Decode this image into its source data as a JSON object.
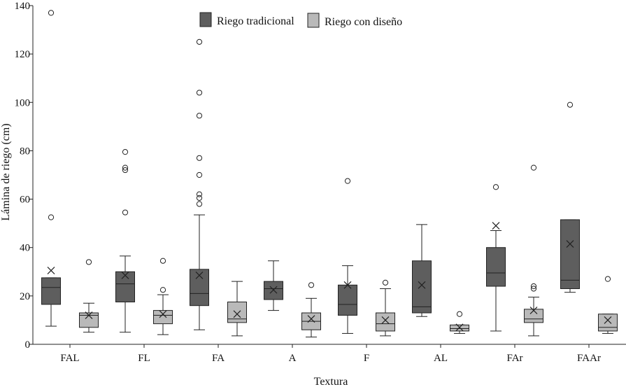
{
  "chart_data": {
    "type": "box",
    "title": "",
    "xlabel": "Textura",
    "ylabel": "Lámina de riego (cm)",
    "ylim": [
      0,
      140
    ],
    "yticks": [
      0,
      20,
      40,
      60,
      80,
      100,
      120,
      140
    ],
    "grid": false,
    "legend_position": "top-center",
    "colors": {
      "tradicional": "#5e5e5e",
      "diseno": "#b9b9b9",
      "axis": "#222222"
    },
    "categories": [
      "FAL",
      "FL",
      "FA",
      "A",
      "F",
      "AL",
      "FAr",
      "FAAr"
    ],
    "series": [
      {
        "name": "Riego tradicional",
        "color": "#5e5e5e",
        "boxes": [
          {
            "whisker_low": 7.5,
            "q1": 16.5,
            "median": 23.5,
            "q3": 27.5,
            "whisker_high": 27.5,
            "mean": 30.5,
            "outliers": [
              52.5,
              137
            ]
          },
          {
            "whisker_low": 5,
            "q1": 17.5,
            "median": 25,
            "q3": 30,
            "whisker_high": 36.5,
            "mean": 28.5,
            "outliers": [
              54.5,
              72,
              73,
              79.5
            ]
          },
          {
            "whisker_low": 6,
            "q1": 16,
            "median": 21,
            "q3": 31,
            "whisker_high": 53.5,
            "mean": 28.5,
            "outliers": [
              58,
              60.5,
              62,
              70,
              77,
              94.5,
              104,
              125
            ]
          },
          {
            "whisker_low": 14,
            "q1": 18.5,
            "median": 23,
            "q3": 26,
            "whisker_high": 34.5,
            "mean": 22.5,
            "outliers": []
          },
          {
            "whisker_low": 4.5,
            "q1": 12,
            "median": 16.5,
            "q3": 24.5,
            "whisker_high": 32.5,
            "mean": 24.5,
            "outliers": [
              67.5
            ]
          },
          {
            "whisker_low": 11.5,
            "q1": 13,
            "median": 15.5,
            "q3": 34.5,
            "whisker_high": 49.5,
            "mean": 24.5,
            "outliers": []
          },
          {
            "whisker_low": 5.5,
            "q1": 24,
            "median": 29.5,
            "q3": 40,
            "whisker_high": 47,
            "mean": 49,
            "outliers": [
              65
            ]
          },
          {
            "whisker_low": 21.5,
            "q1": 23,
            "median": 26.5,
            "q3": 51.5,
            "whisker_high": 51.5,
            "mean": 41.5,
            "outliers": [
              99
            ]
          }
        ]
      },
      {
        "name": "Riego con diseño",
        "color": "#b9b9b9",
        "boxes": [
          {
            "whisker_low": 5,
            "q1": 7,
            "median": 12,
            "q3": 13,
            "whisker_high": 17,
            "mean": 12,
            "outliers": [
              34
            ]
          },
          {
            "whisker_low": 4,
            "q1": 8.5,
            "median": 12,
            "q3": 14,
            "whisker_high": 20.5,
            "mean": 12.5,
            "outliers": [
              22.5,
              34.5
            ]
          },
          {
            "whisker_low": 3.5,
            "q1": 9,
            "median": 10.5,
            "q3": 17.5,
            "whisker_high": 26,
            "mean": 12.5,
            "outliers": []
          },
          {
            "whisker_low": 3,
            "q1": 6,
            "median": 9.5,
            "q3": 13,
            "whisker_high": 19,
            "mean": 10.5,
            "outliers": [
              24.5
            ]
          },
          {
            "whisker_low": 3.5,
            "q1": 5.5,
            "median": 8.5,
            "q3": 13,
            "whisker_high": 23,
            "mean": 10,
            "outliers": [
              25.5
            ]
          },
          {
            "whisker_low": 4.5,
            "q1": 5.5,
            "median": 6.5,
            "q3": 8,
            "whisker_high": 8,
            "mean": 7,
            "outliers": [
              12.5
            ]
          },
          {
            "whisker_low": 3.5,
            "q1": 9,
            "median": 10.5,
            "q3": 14.5,
            "whisker_high": 19.5,
            "mean": 14,
            "outliers": [
              23,
              24,
              73
            ]
          },
          {
            "whisker_low": 4.5,
            "q1": 5.5,
            "median": 7,
            "q3": 12.5,
            "whisker_high": 12.5,
            "mean": 10,
            "outliers": [
              27
            ]
          }
        ]
      }
    ]
  }
}
